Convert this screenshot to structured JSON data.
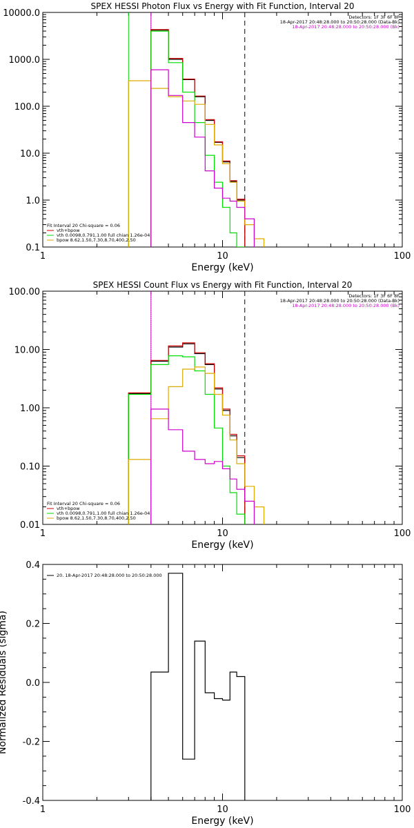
{
  "chart_data": [
    {
      "type": "line",
      "title": "SPEX HESSI Photon Flux vs Energy with Fit Function, Interval 20",
      "xlabel": "Energy (keV)",
      "ylabel": "",
      "xscale": "log",
      "yscale": "log",
      "xlim": [
        1,
        100
      ],
      "ylim": [
        0.1,
        10000
      ],
      "xticks": [
        "1",
        "10",
        "100"
      ],
      "yticks": [
        {
          "value": 0.1,
          "label": "0.1"
        },
        {
          "value": 1,
          "label": "1.0"
        },
        {
          "value": 10,
          "label": "10.0"
        },
        {
          "value": 100,
          "label": "100.0"
        },
        {
          "value": 1000,
          "label": "1000.0"
        },
        {
          "value": 10000,
          "label": "10000.0"
        }
      ],
      "info_lines": [
        {
          "text": "Detectors: 1F 3F 6F 8F",
          "color": "#000000"
        },
        {
          "text": "18-Apr-2017 20:48:28.000 to 20:50:28.000 (Data-Bk)",
          "color": "#000000"
        },
        {
          "text": "18-Apr-2017 20:48:28.000 to 20:50:28.000 (Bk)",
          "color": "#cc00cc"
        }
      ],
      "legend_lines": [
        {
          "text": "Fit Interval 20    Chi-square = 0.06",
          "color": null
        },
        {
          "text": "vth+bpow",
          "color": "#cc0000"
        },
        {
          "text": "vth 0.0098,0.791,1.00  full chian 1.26e-04",
          "color": "#00dd00"
        },
        {
          "text": "bpow 8.62,1.50,7.30,8.70,400,2.50",
          "color": "#ddaa00"
        }
      ],
      "vlines": [
        {
          "x": 3.0,
          "style": "solid",
          "color": "#00dd00"
        },
        {
          "x": 4.0,
          "style": "dotted",
          "color": "#000000"
        },
        {
          "x": 4.0,
          "style": "solid",
          "color": "#cc00cc"
        },
        {
          "x": 13.3,
          "style": "dashed",
          "color": "#000000"
        }
      ],
      "edges": [
        3.0,
        4.0,
        5.0,
        6.0,
        7.0,
        8.0,
        9.0,
        10.0,
        11.0,
        12.0,
        13.3,
        15.0,
        17.0
      ],
      "series": [
        {
          "color": "#000000",
          "values": [
            null,
            4200,
            1000,
            370,
            160,
            50,
            17,
            6.5,
            2.5,
            1.0,
            null,
            null
          ]
        },
        {
          "color": "#cc0000",
          "values": [
            null,
            4300,
            1050,
            380,
            165,
            52,
            17.5,
            6.8,
            2.6,
            1.05,
            null,
            null
          ]
        },
        {
          "color": "#00dd00",
          "values": [
            null,
            4000,
            850,
            200,
            45,
            9,
            2.4,
            0.7,
            0.2,
            0.1,
            null,
            null
          ]
        },
        {
          "color": "#ddaa00",
          "values": [
            350,
            240,
            160,
            130,
            110,
            41,
            15,
            6.0,
            2.4,
            0.95,
            0.3,
            0.15
          ]
        },
        {
          "color": "#cc00cc",
          "values": [
            null,
            600,
            170,
            45,
            22,
            4.2,
            1.8,
            1.1,
            0.95,
            0.7,
            0.4,
            null
          ]
        }
      ]
    },
    {
      "type": "line",
      "title": "SPEX HESSI Count Flux vs Energy with Fit Function, Interval 20",
      "xlabel": "Energy (keV)",
      "ylabel": "",
      "xscale": "log",
      "yscale": "log",
      "xlim": [
        1,
        100
      ],
      "ylim": [
        0.01,
        100
      ],
      "xticks": [
        "1",
        "10",
        "100"
      ],
      "yticks": [
        {
          "value": 0.01,
          "label": "0.01"
        },
        {
          "value": 0.1,
          "label": "0.10"
        },
        {
          "value": 1,
          "label": "1.00"
        },
        {
          "value": 10,
          "label": "10.00"
        },
        {
          "value": 100,
          "label": "100.00"
        }
      ],
      "info_lines": [
        {
          "text": "Detectors: 1F 3F 6F 8F",
          "color": "#000000"
        },
        {
          "text": "18-Apr-2017 20:48:28.000 to 20:50:28.000 (Data-Bk)",
          "color": "#000000"
        },
        {
          "text": "18-Apr-2017 20:48:28.000 to 20:50:28.000 (Bk)",
          "color": "#cc00cc"
        }
      ],
      "legend_lines": [
        {
          "text": "Fit Interval 20    Chi-square = 0.06",
          "color": null
        },
        {
          "text": "vth+bpow",
          "color": "#cc0000"
        },
        {
          "text": "vth 0.0098,0.791,1.00  full chian 1.26e-04",
          "color": "#00dd00"
        },
        {
          "text": "bpow 8.62,1.50,7.30,8.70,400,2.50",
          "color": "#ddaa00"
        }
      ],
      "vlines": [
        {
          "x": 4.0,
          "style": "dotted",
          "color": "#000000"
        },
        {
          "x": 4.0,
          "style": "solid",
          "color": "#cc00cc"
        },
        {
          "x": 13.3,
          "style": "dashed",
          "color": "#000000"
        }
      ],
      "edges": [
        3.0,
        4.0,
        5.0,
        6.0,
        7.0,
        8.0,
        9.0,
        10.0,
        11.0,
        12.0,
        13.3,
        15.0,
        17.0
      ],
      "series": [
        {
          "color": "#000000",
          "values": [
            1.75,
            6.3,
            11,
            12.5,
            8.5,
            5.5,
            2.1,
            0.9,
            0.33,
            0.14,
            null,
            null
          ]
        },
        {
          "color": "#cc0000",
          "values": [
            1.8,
            6.5,
            11.5,
            13,
            8.8,
            5.7,
            2.2,
            0.95,
            0.35,
            0.15,
            null,
            null
          ]
        },
        {
          "color": "#00dd00",
          "values": [
            1.7,
            5.5,
            7.8,
            7.5,
            4.3,
            1.7,
            0.45,
            0.1,
            0.035,
            0.015,
            null,
            null
          ]
        },
        {
          "color": "#ddaa00",
          "values": [
            0.13,
            0.65,
            2.3,
            4.6,
            5.0,
            3.9,
            1.7,
            0.75,
            0.28,
            0.11,
            0.045,
            0.02
          ]
        },
        {
          "color": "#cc00cc",
          "values": [
            null,
            0.95,
            0.42,
            0.18,
            0.13,
            0.11,
            0.12,
            0.09,
            0.06,
            0.04,
            0.025,
            null
          ]
        }
      ]
    },
    {
      "type": "line",
      "title": "",
      "xlabel": "Energy (keV)",
      "ylabel": "Normalized Residuals (sigma)",
      "xscale": "log",
      "yscale": "linear",
      "xlim": [
        1,
        100
      ],
      "ylim": [
        -0.4,
        0.4
      ],
      "xticks": [
        "1",
        "10",
        "100"
      ],
      "yticks": [
        {
          "value": -0.4,
          "label": "-0.4"
        },
        {
          "value": -0.2,
          "label": "-0.2"
        },
        {
          "value": 0.0,
          "label": "0.0"
        },
        {
          "value": 0.2,
          "label": "0.2"
        },
        {
          "value": 0.4,
          "label": "0.4"
        }
      ],
      "legend_lines": [
        {
          "text": "20. 18-Apr-2017 20:48:28.000 to 20:50:28.000",
          "color": "#000000"
        }
      ],
      "edges": [
        4.0,
        5.0,
        6.0,
        7.0,
        8.0,
        9.0,
        10.0,
        11.0,
        12.0,
        13.3
      ],
      "series": [
        {
          "color": "#000000",
          "values": [
            0.035,
            0.37,
            -0.26,
            0.14,
            -0.035,
            -0.055,
            -0.06,
            0.035,
            0.02
          ]
        }
      ]
    }
  ]
}
